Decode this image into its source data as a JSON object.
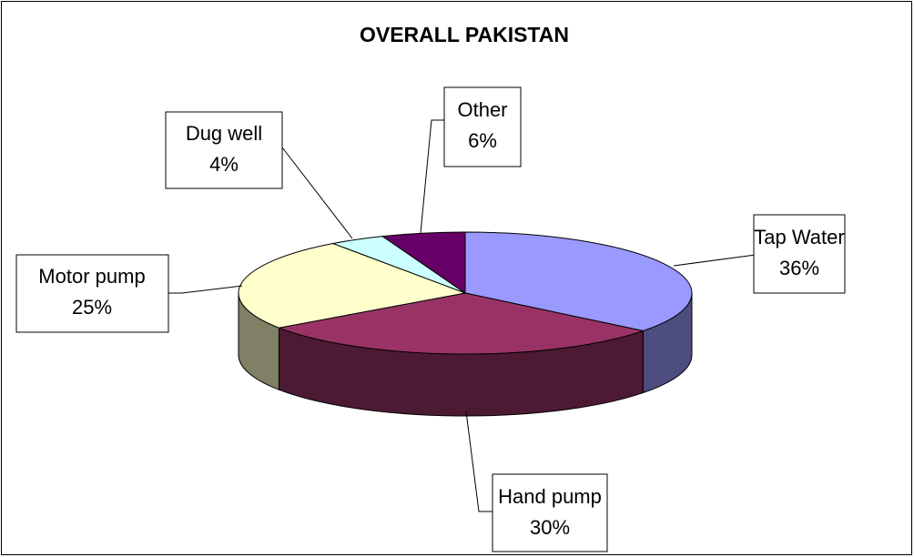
{
  "chart_data": {
    "type": "pie",
    "title": "OVERALL PAKISTAN",
    "categories": [
      "Tap Water",
      "Hand pump",
      "Motor pump",
      "Dug well",
      "Other"
    ],
    "values": [
      36,
      30,
      25,
      4,
      6
    ],
    "value_labels": [
      "36%",
      "30%",
      "25%",
      "4%",
      "6%"
    ],
    "colors": [
      "#9999ff",
      "#993366",
      "#ffffcc",
      "#ccffff",
      "#660066"
    ]
  }
}
